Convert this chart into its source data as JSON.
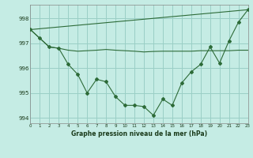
{
  "background_color": "#c5ece4",
  "grid_color": "#9acfc6",
  "line_color": "#2d6b38",
  "title": "Graphe pression niveau de la mer (hPa)",
  "xlim": [
    0,
    23
  ],
  "ylim": [
    993.78,
    998.55
  ],
  "yticks": [
    994,
    995,
    996,
    997,
    998
  ],
  "xticks": [
    0,
    1,
    2,
    3,
    4,
    5,
    6,
    7,
    8,
    9,
    10,
    11,
    12,
    13,
    14,
    15,
    16,
    17,
    18,
    19,
    20,
    21,
    22,
    23
  ],
  "line1_x": [
    0,
    1,
    2,
    3,
    4,
    5,
    6,
    7,
    8,
    9,
    10,
    11,
    12,
    13,
    14,
    15,
    16,
    17,
    18,
    19,
    20,
    21,
    22,
    23
  ],
  "line1_y": [
    997.55,
    997.2,
    996.85,
    996.8,
    996.15,
    995.75,
    995.0,
    995.55,
    995.45,
    994.85,
    994.5,
    994.5,
    994.45,
    994.1,
    994.75,
    994.5,
    995.4,
    995.85,
    996.15,
    996.85,
    996.2,
    997.1,
    997.85,
    998.35
  ],
  "line2_x": [
    0,
    1,
    2,
    3,
    4,
    5,
    6,
    7,
    8,
    9,
    10,
    11,
    12,
    13,
    14,
    15,
    16,
    17,
    18,
    19,
    20,
    21,
    22,
    23
  ],
  "line2_y": [
    997.55,
    997.2,
    996.85,
    996.8,
    996.72,
    996.68,
    996.7,
    996.72,
    996.75,
    996.72,
    996.7,
    996.68,
    996.65,
    996.67,
    996.68,
    996.68,
    996.68,
    996.68,
    996.7,
    996.7,
    996.7,
    996.7,
    996.72,
    996.72
  ],
  "line3_x": [
    0,
    23
  ],
  "line3_y": [
    997.55,
    998.35
  ]
}
